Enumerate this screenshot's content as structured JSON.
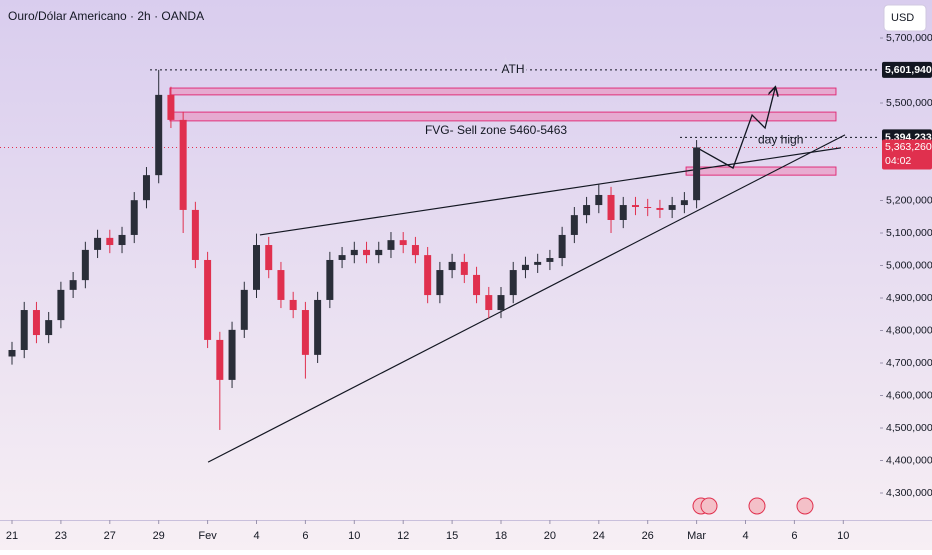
{
  "chart_data": {
    "type": "candlestick",
    "title": "Ouro/Dólar Americano · 2h · OANDA",
    "currency": "USD",
    "up_color": "#2a2e39",
    "down_color": "#e0304e",
    "x": [
      0,
      0.5,
      1,
      1.5,
      2,
      2.5,
      3,
      3.5,
      4,
      4.5,
      5,
      5.5,
      6,
      6.5,
      7,
      7.5,
      8,
      8.5,
      9,
      9.5,
      10,
      10.5,
      11,
      11.5,
      12,
      12.5,
      13,
      13.5,
      14,
      14.5,
      15,
      15.5,
      16,
      16.5,
      17,
      17.5,
      18,
      18.5,
      19,
      19.5,
      20,
      20.5,
      21,
      21.5,
      22,
      22.5,
      23,
      23.5,
      24,
      24.5,
      25,
      25.5,
      26,
      26.5,
      27,
      27.5,
      28
    ],
    "open": [
      4720000,
      4740000,
      4863000,
      4786000,
      4832000,
      4925000,
      4955000,
      5048000,
      5085000,
      5063000,
      5094000,
      5201000,
      5278000,
      5525000,
      5448000,
      5171000,
      5017000,
      4771000,
      4648000,
      4802000,
      4925000,
      5063000,
      4986000,
      4894000,
      4863000,
      4725000,
      4894000,
      5017000,
      5032000,
      5048000,
      5032000,
      5048000,
      5078000,
      5063000,
      5032000,
      4909000,
      4986000,
      5011000,
      4971000,
      4909000,
      4863000,
      4909000,
      4986000,
      5002000,
      5011000,
      5023000,
      5094000,
      5155000,
      5186000,
      5217000,
      5140000,
      5186000,
      5180000,
      5177000,
      5171000,
      5186000,
      5201000
    ],
    "high": [
      4765000,
      4888000,
      4888000,
      4857000,
      4950000,
      4980000,
      5073000,
      5110000,
      5110000,
      5119000,
      5226000,
      5303000,
      5601940,
      5550000,
      5473000,
      5196000,
      5042000,
      4796000,
      4827000,
      4950000,
      5098000,
      5088000,
      5011000,
      4919000,
      4888000,
      4919000,
      5042000,
      5057000,
      5073000,
      5073000,
      5073000,
      5103000,
      5103000,
      5088000,
      5057000,
      5011000,
      5036000,
      5036000,
      4996000,
      4934000,
      4934000,
      5011000,
      5027000,
      5036000,
      5048000,
      5119000,
      5180000,
      5211000,
      5249000,
      5242000,
      5211000,
      5211000,
      5205000,
      5202000,
      5211000,
      5226000,
      5386000
    ],
    "low": [
      4695000,
      4715000,
      4761000,
      4761000,
      4807000,
      4900000,
      4930000,
      5023000,
      5038000,
      5038000,
      5069000,
      5176000,
      5253000,
      5423000,
      5100000,
      4992000,
      4746000,
      4494000,
      4623000,
      4777000,
      4900000,
      4961000,
      4869000,
      4838000,
      4652000,
      4700000,
      4869000,
      4992000,
      5007000,
      5007000,
      5007000,
      5023000,
      5038000,
      5007000,
      4884000,
      4884000,
      4961000,
      4946000,
      4884000,
      4838000,
      4838000,
      4884000,
      4961000,
      4977000,
      4986000,
      4998000,
      5069000,
      5130000,
      5161000,
      5100000,
      5115000,
      5155000,
      5152000,
      5146000,
      5146000,
      5161000,
      5176000
    ],
    "close": [
      4740000,
      4863000,
      4786000,
      4832000,
      4925000,
      4955000,
      5048000,
      5085000,
      5063000,
      5094000,
      5201000,
      5278000,
      5525000,
      5448000,
      5171000,
      5017000,
      4771000,
      4648000,
      4802000,
      4925000,
      5063000,
      4986000,
      4894000,
      4863000,
      4725000,
      4894000,
      5017000,
      5032000,
      5048000,
      5032000,
      5048000,
      5078000,
      5063000,
      5032000,
      4909000,
      4986000,
      5011000,
      4971000,
      4909000,
      4863000,
      4909000,
      4986000,
      5002000,
      5011000,
      5023000,
      5094000,
      5155000,
      5186000,
      5217000,
      5140000,
      5186000,
      5180000,
      5177000,
      5171000,
      5186000,
      5201000,
      5363260
    ],
    "xlim": [
      -0.5,
      35.5
    ],
    "ylim": [
      4200000,
      5800000
    ],
    "xticks": [
      {
        "value": 0,
        "label": "21"
      },
      {
        "value": 2,
        "label": "23"
      },
      {
        "value": 4,
        "label": "27"
      },
      {
        "value": 6,
        "label": "29"
      },
      {
        "value": 8,
        "label": "Fev"
      },
      {
        "value": 10,
        "label": "4"
      },
      {
        "value": 12,
        "label": "6"
      },
      {
        "value": 14,
        "label": "10"
      },
      {
        "value": 16,
        "label": "12"
      },
      {
        "value": 18,
        "label": "15"
      },
      {
        "value": 20,
        "label": "18"
      },
      {
        "value": 22,
        "label": "20"
      },
      {
        "value": 24,
        "label": "24"
      },
      {
        "value": 26,
        "label": "26"
      },
      {
        "value": 28,
        "label": "Mar"
      },
      {
        "value": 30,
        "label": "4"
      },
      {
        "value": 32,
        "label": "6"
      },
      {
        "value": 34,
        "label": "10"
      }
    ],
    "yticks": [
      {
        "value": 5700000,
        "label": "5,700,000"
      },
      {
        "value": 5500000,
        "label": "5,500,000"
      },
      {
        "value": 5200000,
        "label": "5,200,000"
      },
      {
        "value": 5100000,
        "label": "5,100,000"
      },
      {
        "value": 5000000,
        "label": "5,000,000"
      },
      {
        "value": 4900000,
        "label": "4,900,000"
      },
      {
        "value": 4800000,
        "label": "4,800,000"
      },
      {
        "value": 4700000,
        "label": "4,700,000"
      },
      {
        "value": 4600000,
        "label": "4,600,000"
      },
      {
        "value": 4500000,
        "label": "4,500,000"
      },
      {
        "value": 4400000,
        "label": "4,400,000"
      },
      {
        "value": 4300000,
        "label": "4,300,000"
      }
    ],
    "ath": {
      "value": 5601940,
      "label": "5,601,940",
      "text": "ATH"
    },
    "day_high": {
      "value": 5394233,
      "label": "5,394,233",
      "text": "day high"
    },
    "last_price": {
      "value": 5363260,
      "label": "5,363,260",
      "countdown": "04:02"
    },
    "zones": [
      {
        "top": 5546000,
        "bottom": 5525000,
        "x0": 6.46,
        "x1": 33.7
      },
      {
        "top": 5472000,
        "bottom": 5445000,
        "x0": 6.46,
        "x1": 33.7,
        "label": "FVG- Sell zone  5460-5463"
      },
      {
        "top": 5303000,
        "bottom": 5278000,
        "x0": 27.57,
        "x1": 33.7
      }
    ],
    "trendlines": [
      {
        "x": [
          10.14,
          33.9
        ],
        "y": [
          5094000,
          5362000
        ]
      },
      {
        "x": [
          8.02,
          34.07
        ],
        "y": [
          4395000,
          5402000
        ]
      }
    ],
    "projection": {
      "x": [
        28.02,
        29.49,
        30.27,
        30.8,
        31.21
      ],
      "y": [
        5362000,
        5300000,
        5463000,
        5423000,
        5546000
      ]
    }
  }
}
